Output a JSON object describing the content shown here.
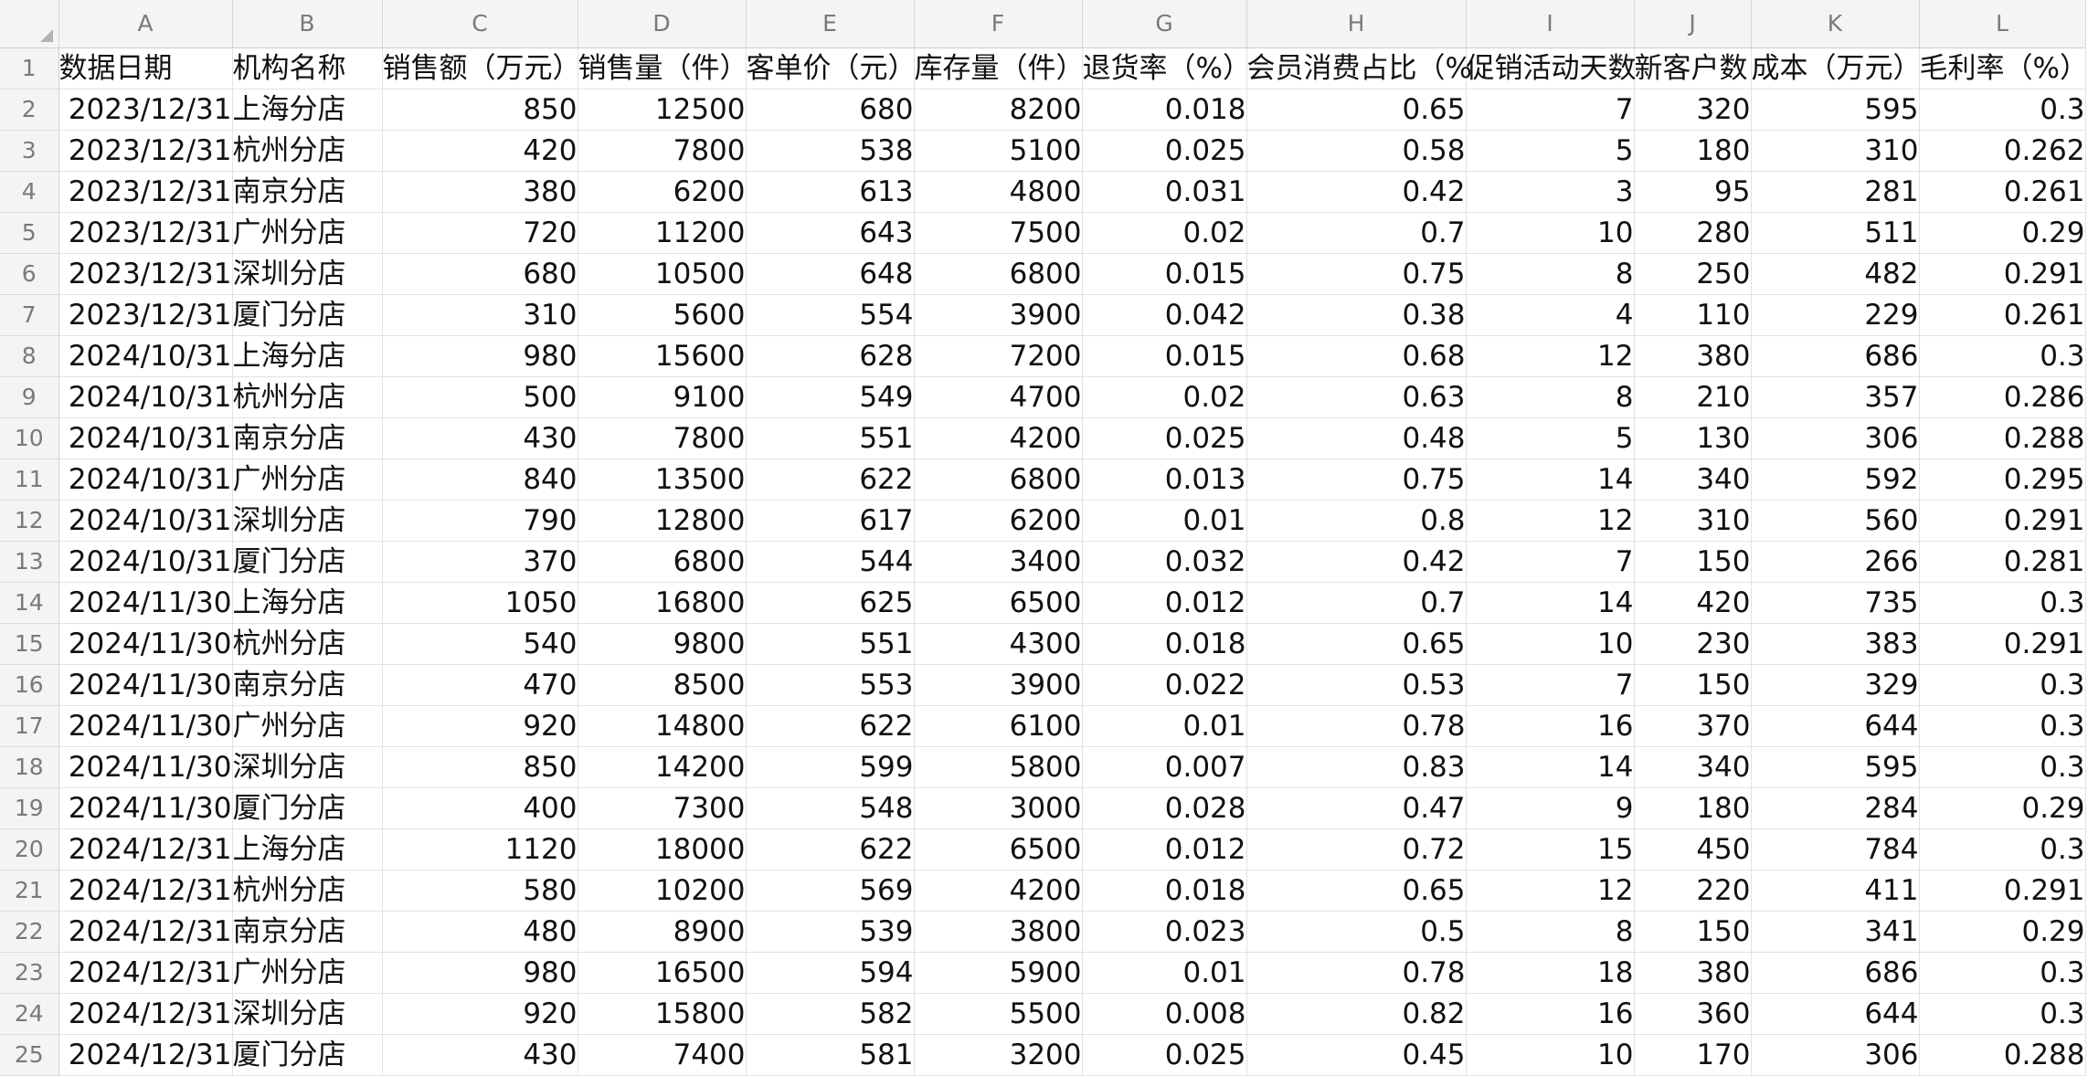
{
  "sheet": {
    "columns": [
      "A",
      "B",
      "C",
      "D",
      "E",
      "F",
      "G",
      "H",
      "I",
      "J",
      "K",
      "L"
    ],
    "headers": [
      "数据日期",
      "机构名称",
      "销售额（万元）",
      "销售量（件）",
      "客单价（元）",
      "库存量（件）",
      "退货率（%）",
      "会员消费占比（%",
      "促销活动天数",
      "新客户数",
      "成本（万元）",
      "毛利率（%）"
    ],
    "rows": [
      [
        "2023/12/31",
        "上海分店",
        "850",
        "12500",
        "680",
        "8200",
        "0.018",
        "0.65",
        "7",
        "320",
        "595",
        "0.3"
      ],
      [
        "2023/12/31",
        "杭州分店",
        "420",
        "7800",
        "538",
        "5100",
        "0.025",
        "0.58",
        "5",
        "180",
        "310",
        "0.262"
      ],
      [
        "2023/12/31",
        "南京分店",
        "380",
        "6200",
        "613",
        "4800",
        "0.031",
        "0.42",
        "3",
        "95",
        "281",
        "0.261"
      ],
      [
        "2023/12/31",
        "广州分店",
        "720",
        "11200",
        "643",
        "7500",
        "0.02",
        "0.7",
        "10",
        "280",
        "511",
        "0.29"
      ],
      [
        "2023/12/31",
        "深圳分店",
        "680",
        "10500",
        "648",
        "6800",
        "0.015",
        "0.75",
        "8",
        "250",
        "482",
        "0.291"
      ],
      [
        "2023/12/31",
        "厦门分店",
        "310",
        "5600",
        "554",
        "3900",
        "0.042",
        "0.38",
        "4",
        "110",
        "229",
        "0.261"
      ],
      [
        "2024/10/31",
        "上海分店",
        "980",
        "15600",
        "628",
        "7200",
        "0.015",
        "0.68",
        "12",
        "380",
        "686",
        "0.3"
      ],
      [
        "2024/10/31",
        "杭州分店",
        "500",
        "9100",
        "549",
        "4700",
        "0.02",
        "0.63",
        "8",
        "210",
        "357",
        "0.286"
      ],
      [
        "2024/10/31",
        "南京分店",
        "430",
        "7800",
        "551",
        "4200",
        "0.025",
        "0.48",
        "5",
        "130",
        "306",
        "0.288"
      ],
      [
        "2024/10/31",
        "广州分店",
        "840",
        "13500",
        "622",
        "6800",
        "0.013",
        "0.75",
        "14",
        "340",
        "592",
        "0.295"
      ],
      [
        "2024/10/31",
        "深圳分店",
        "790",
        "12800",
        "617",
        "6200",
        "0.01",
        "0.8",
        "12",
        "310",
        "560",
        "0.291"
      ],
      [
        "2024/10/31",
        "厦门分店",
        "370",
        "6800",
        "544",
        "3400",
        "0.032",
        "0.42",
        "7",
        "150",
        "266",
        "0.281"
      ],
      [
        "2024/11/30",
        "上海分店",
        "1050",
        "16800",
        "625",
        "6500",
        "0.012",
        "0.7",
        "14",
        "420",
        "735",
        "0.3"
      ],
      [
        "2024/11/30",
        "杭州分店",
        "540",
        "9800",
        "551",
        "4300",
        "0.018",
        "0.65",
        "10",
        "230",
        "383",
        "0.291"
      ],
      [
        "2024/11/30",
        "南京分店",
        "470",
        "8500",
        "553",
        "3900",
        "0.022",
        "0.53",
        "7",
        "150",
        "329",
        "0.3"
      ],
      [
        "2024/11/30",
        "广州分店",
        "920",
        "14800",
        "622",
        "6100",
        "0.01",
        "0.78",
        "16",
        "370",
        "644",
        "0.3"
      ],
      [
        "2024/11/30",
        "深圳分店",
        "850",
        "14200",
        "599",
        "5800",
        "0.007",
        "0.83",
        "14",
        "340",
        "595",
        "0.3"
      ],
      [
        "2024/11/30",
        "厦门分店",
        "400",
        "7300",
        "548",
        "3000",
        "0.028",
        "0.47",
        "9",
        "180",
        "284",
        "0.29"
      ],
      [
        "2024/12/31",
        "上海分店",
        "1120",
        "18000",
        "622",
        "6500",
        "0.012",
        "0.72",
        "15",
        "450",
        "784",
        "0.3"
      ],
      [
        "2024/12/31",
        "杭州分店",
        "580",
        "10200",
        "569",
        "4200",
        "0.018",
        "0.65",
        "12",
        "220",
        "411",
        "0.291"
      ],
      [
        "2024/12/31",
        "南京分店",
        "480",
        "8900",
        "539",
        "3800",
        "0.023",
        "0.5",
        "8",
        "150",
        "341",
        "0.29"
      ],
      [
        "2024/12/31",
        "广州分店",
        "980",
        "16500",
        "594",
        "5900",
        "0.01",
        "0.78",
        "18",
        "380",
        "686",
        "0.3"
      ],
      [
        "2024/12/31",
        "深圳分店",
        "920",
        "15800",
        "582",
        "5500",
        "0.008",
        "0.82",
        "16",
        "360",
        "644",
        "0.3"
      ],
      [
        "2024/12/31",
        "厦门分店",
        "430",
        "7400",
        "581",
        "3200",
        "0.025",
        "0.45",
        "10",
        "170",
        "306",
        "0.288"
      ]
    ]
  }
}
